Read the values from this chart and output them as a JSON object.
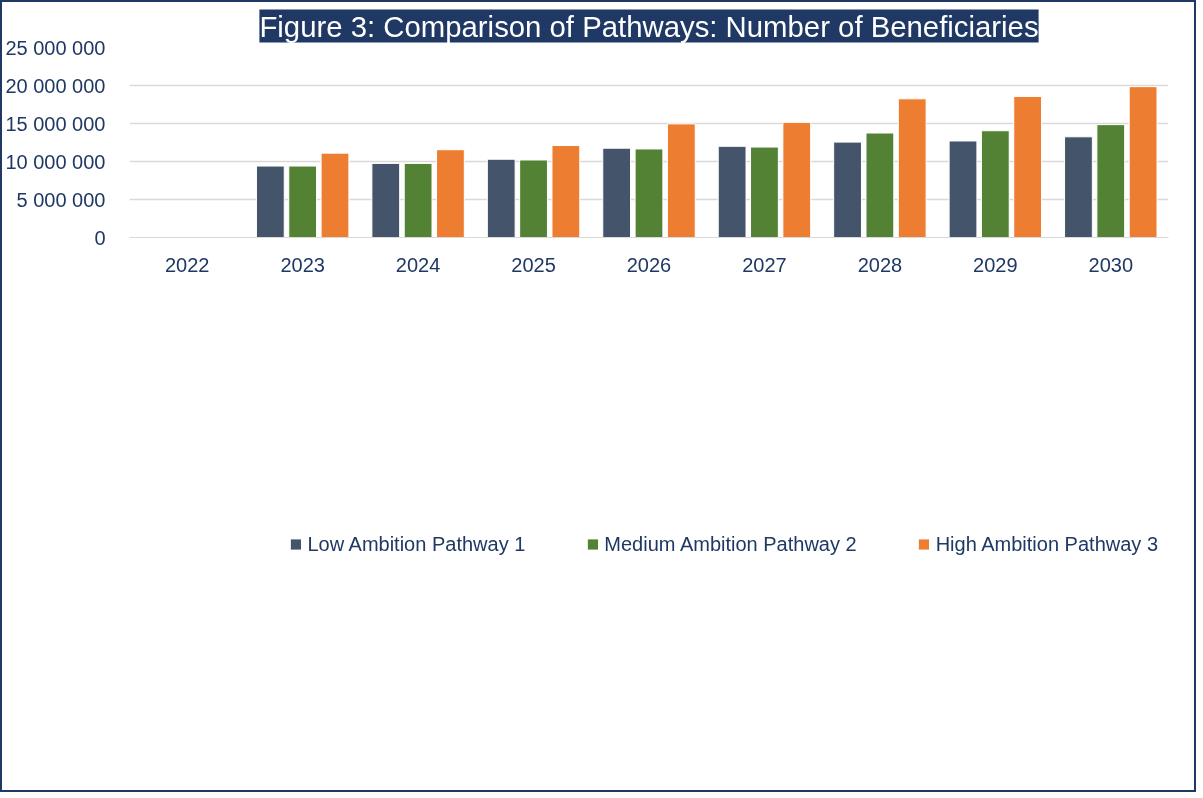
{
  "chart_data": {
    "type": "bar",
    "title": "Figure 3: Comparison of Pathways: Number of Beneficiaries",
    "categories": [
      "2022",
      "2023",
      "2024",
      "2025",
      "2026",
      "2027",
      "2028",
      "2029",
      "2030"
    ],
    "series": [
      {
        "name": "Low Ambition Pathway 1",
        "color": "#44546a",
        "values": [
          null,
          9400000,
          9750000,
          10300000,
          11750000,
          12000000,
          12550000,
          12700000,
          13250000
        ]
      },
      {
        "name": "Medium Ambition Pathway 2",
        "color": "#548235",
        "values": [
          null,
          9400000,
          9750000,
          10200000,
          11650000,
          11900000,
          13750000,
          14050000,
          14850000
        ]
      },
      {
        "name": "High Ambition Pathway 3",
        "color": "#ed7d31",
        "values": [
          null,
          11100000,
          11550000,
          12100000,
          14950000,
          15150000,
          18250000,
          18550000,
          19850000
        ]
      }
    ],
    "ylim": [
      0,
      25000000
    ],
    "yticks": [
      {
        "value": 0,
        "label": "0"
      },
      {
        "value": 5000000,
        "label": "5 000 000"
      },
      {
        "value": 10000000,
        "label": "10 000 000"
      },
      {
        "value": 15000000,
        "label": "15 000 000"
      },
      {
        "value": 20000000,
        "label": "20 000 000"
      },
      {
        "value": 25000000,
        "label": "25 000 000"
      }
    ],
    "grid": "y",
    "legend": "bottom"
  }
}
